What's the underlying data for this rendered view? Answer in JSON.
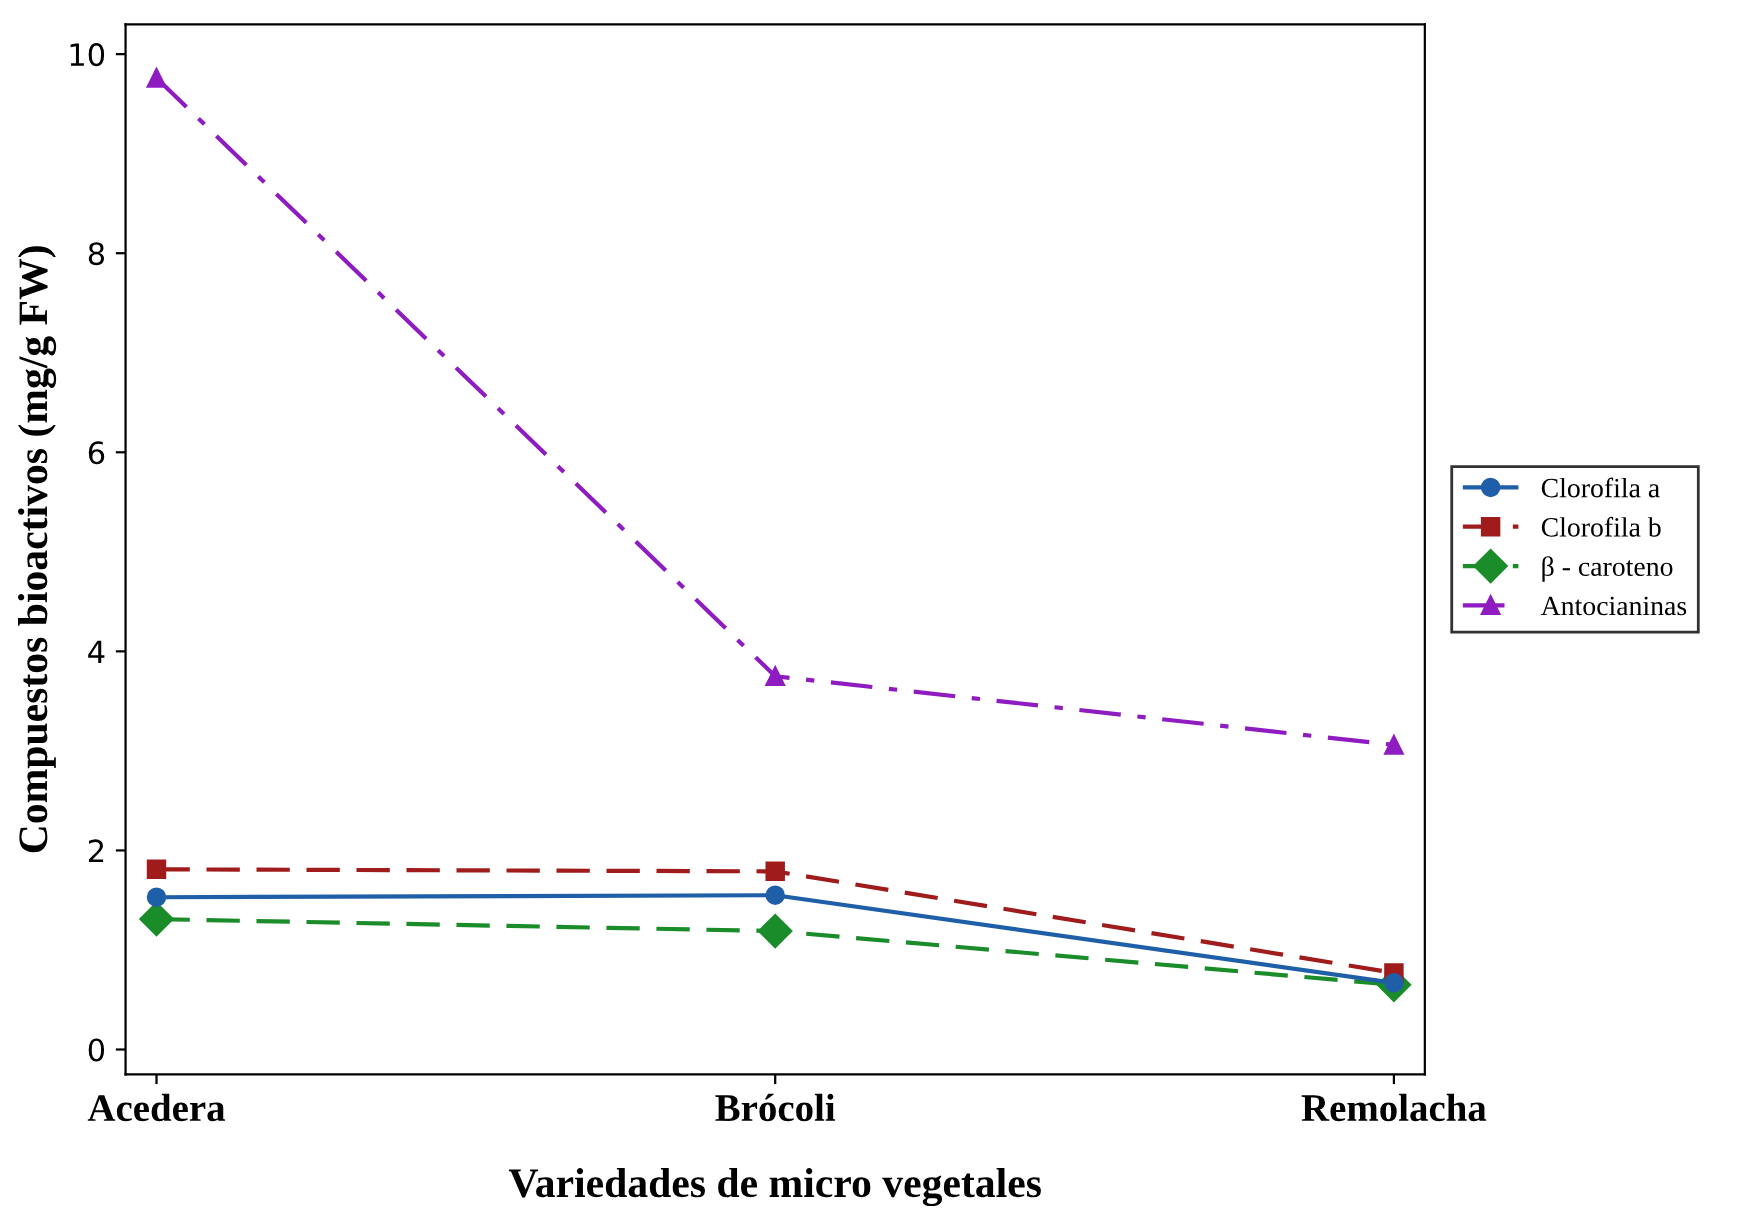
{
  "chart_data": {
    "type": "line",
    "xlabel": "Variedades de micro vegetales",
    "ylabel": "Compuestos bioactivos (mg/g FW)",
    "categories": [
      "Acedera",
      "Brócoli",
      "Remolacha"
    ],
    "series": [
      {
        "name": "Clorofila a",
        "color": "#1f5fa8",
        "marker": "circle",
        "line_style": "solid",
        "values": [
          1.53,
          1.55,
          0.67
        ]
      },
      {
        "name": "Clorofila b",
        "color": "#a01c1c",
        "marker": "square",
        "line_style": "dashed",
        "values": [
          1.81,
          1.79,
          0.77
        ]
      },
      {
        "name": "β - caroteno",
        "color": "#1a8c2a",
        "marker": "diamond",
        "line_style": "dashed",
        "values": [
          1.31,
          1.19,
          0.65
        ]
      },
      {
        "name": "Antocianinas",
        "color": "#8e1cc0",
        "marker": "triangle",
        "line_style": "dashdot",
        "values": [
          9.76,
          3.75,
          3.06
        ]
      }
    ],
    "ylim": [
      -0.25,
      10.3
    ],
    "yticks": [
      0,
      2,
      4,
      6,
      8,
      10
    ],
    "grid": false,
    "legend": "right"
  }
}
